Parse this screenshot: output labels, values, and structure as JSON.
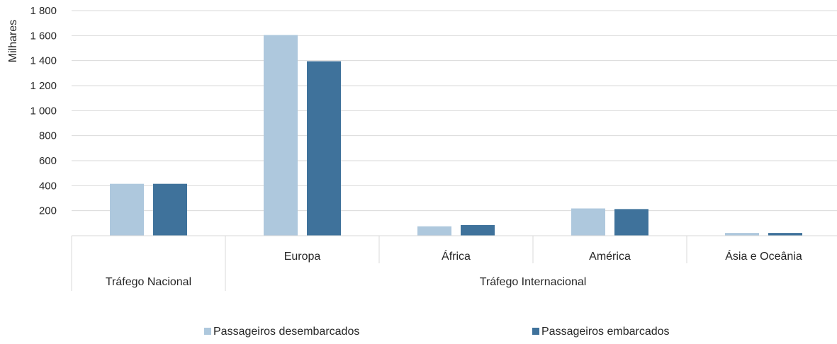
{
  "chart_data": {
    "type": "bar",
    "ylabel": "Milhares",
    "ylim": [
      0,
      1800
    ],
    "yticks": [
      200,
      400,
      600,
      800,
      1000,
      1200,
      1400,
      1600,
      1800
    ],
    "ytick_labels": [
      "200",
      "400",
      "600",
      "800",
      "1 000",
      "1 200",
      "1 400",
      "1 600",
      "1 800"
    ],
    "grid": true,
    "legend_position": "bottom",
    "categories": [
      "",
      "Europa",
      "África",
      "América",
      "Ásia e Oceânia"
    ],
    "category_groups": [
      {
        "label": "Tráfego Nacional",
        "span": 1
      },
      {
        "label": "Tráfego Internacional",
        "span": 4
      }
    ],
    "series": [
      {
        "name": "Passageiros desembarcados",
        "color": "#aec8dd",
        "values": [
          415,
          1605,
          75,
          218,
          22
        ]
      },
      {
        "name": "Passageiros embarcados",
        "color": "#3f729b",
        "values": [
          415,
          1395,
          85,
          213,
          22
        ]
      }
    ]
  }
}
